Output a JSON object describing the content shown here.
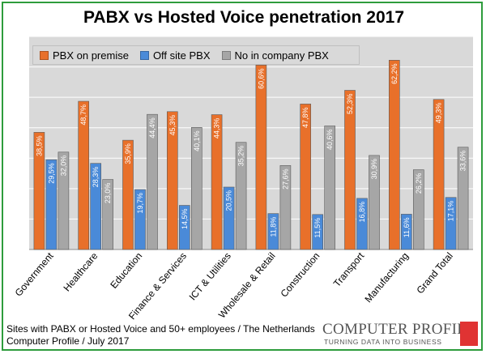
{
  "chart_data": {
    "type": "bar",
    "title": "PABX vs Hosted Voice penetration 2017",
    "categories": [
      "Government",
      "Healthcare",
      "Education",
      "Finance & Services",
      "ICT & Utilities",
      "Wholesale & Retail",
      "Construction",
      "Transport",
      "Manufacturing",
      "Grand Total"
    ],
    "series": [
      {
        "name": "PBX on premise",
        "color": "#e8702a",
        "values": [
          38.5,
          48.7,
          35.9,
          45.3,
          44.3,
          60.6,
          47.8,
          52.3,
          62.2,
          49.3
        ],
        "labels": [
          "38,5%",
          "48,7%",
          "35,9%",
          "45,3%",
          "44,3%",
          "60,6%",
          "47,8%",
          "52,3%",
          "62,2%",
          "49,3%"
        ]
      },
      {
        "name": "Off site PBX",
        "color": "#4a8ad8",
        "values": [
          29.5,
          28.3,
          19.7,
          14.5,
          20.5,
          11.8,
          11.5,
          16.8,
          11.6,
          17.1
        ],
        "labels": [
          "29,5%",
          "28,3%",
          "19,7%",
          "14,5%",
          "20,5%",
          "11,8%",
          "11,5%",
          "16,8%",
          "11,6%",
          "17,1%"
        ]
      },
      {
        "name": "No in company PBX",
        "color": "#a6a6a6",
        "values": [
          32.0,
          23.0,
          44.4,
          40.1,
          35.2,
          27.6,
          40.6,
          30.9,
          26.2,
          33.6
        ],
        "labels": [
          "32,0%",
          "23,0%",
          "44,4%",
          "40,1%",
          "35,2%",
          "27,6%",
          "40,6%",
          "30,9%",
          "26,2%",
          "33,6%"
        ]
      }
    ],
    "ylim": [
      0,
      70
    ],
    "grid": true,
    "legend_position": "top-left"
  },
  "footer": {
    "line1": "Sites with PABX or Hosted Voice and 50+ employees / The Netherlands",
    "line2": "Computer Profile / July 2017"
  },
  "logo": {
    "name": "COMPUTER PROFILE",
    "tagline": "TURNING DATA INTO BUSINESS"
  },
  "colors": {
    "frame": "#2e9c3c",
    "plot_background": "#d9d9d9",
    "logo_accent": "#e03333"
  }
}
